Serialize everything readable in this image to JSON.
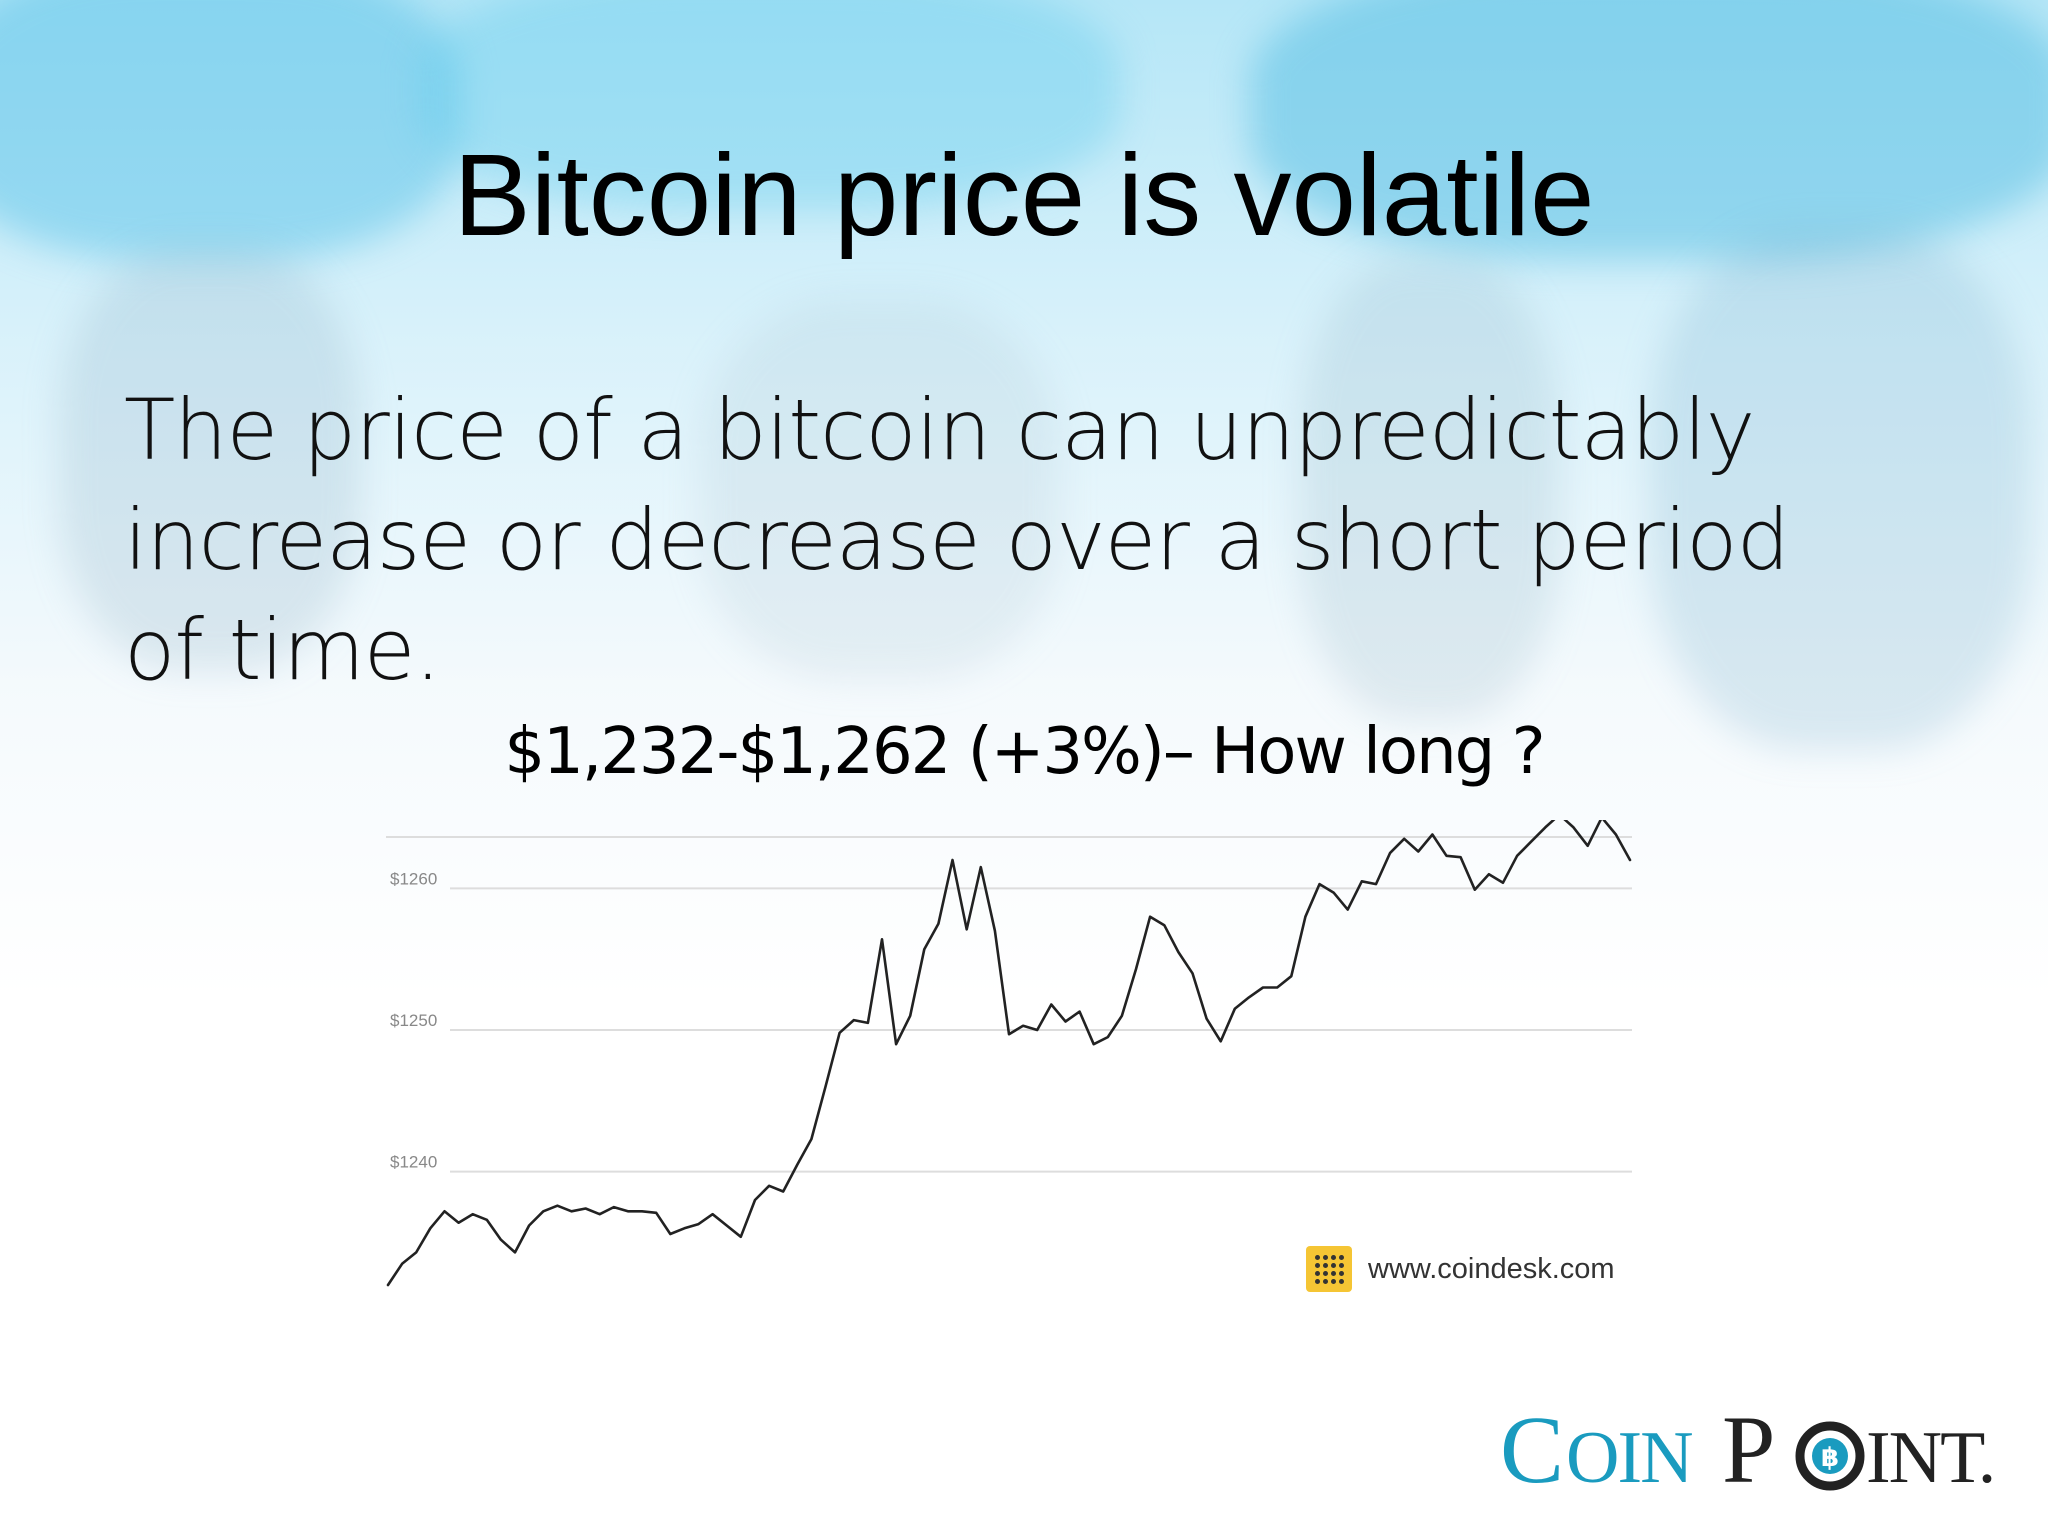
{
  "slide": {
    "title": "Bitcoin price is volatile",
    "body": "The price of a bitcoin can unpredictably increase or decrease over a short period of time.",
    "chart_heading": "$1,232-$1,262 (+3%)– How long ?",
    "source_url": "www.coindesk.com",
    "logo_text": "COINPOINT.",
    "colors": {
      "line": "#222222",
      "grid": "#dddddd",
      "tick_label": "#888888",
      "logo_teal": "#1a9bbf",
      "logo_dark": "#222222",
      "badge": "#f5c534"
    }
  },
  "chart_data": {
    "type": "line",
    "title": "",
    "xlabel": "",
    "ylabel": "",
    "ylim": [
      1232,
      1262
    ],
    "yticks": [
      {
        "value": 1240,
        "label": "$1240"
      },
      {
        "value": 1250,
        "label": "$1250"
      },
      {
        "value": 1260,
        "label": "$1260"
      }
    ],
    "grid": true,
    "series": [
      {
        "values": [
          1232.0,
          1233.5,
          1234.3,
          1236.0,
          1237.2,
          1236.4,
          1237.0,
          1236.6,
          1235.2,
          1234.3,
          1236.2,
          1237.2,
          1237.6,
          1237.2,
          1237.4,
          1237.0,
          1237.5,
          1237.2,
          1237.2,
          1237.1,
          1235.6,
          1236.0,
          1236.3,
          1237.0,
          1236.2,
          1235.4,
          1238.0,
          1239.0,
          1238.6,
          1240.5,
          1242.3,
          1246.0,
          1249.8,
          1250.7,
          1250.5,
          1256.4,
          1249.0,
          1251.0,
          1255.7,
          1257.5,
          1262.0,
          1257.1,
          1261.5,
          1257.0,
          1249.7,
          1250.3,
          1250.0,
          1251.8,
          1250.6,
          1251.3,
          1249.0,
          1249.5,
          1251.0,
          1254.3,
          1258.0,
          1257.4,
          1255.5,
          1254.0,
          1250.8,
          1249.2,
          1251.5,
          1252.3,
          1253.0,
          1253.0,
          1253.8,
          1258.0,
          1260.3,
          1259.7,
          1258.5,
          1260.5,
          1260.3,
          1262.5,
          1263.5,
          1262.6,
          1263.8,
          1262.3,
          1262.2,
          1259.9,
          1261.0,
          1260.4,
          1262.3,
          1263.3,
          1264.3,
          1265.2,
          1264.3,
          1263.0,
          1265.0,
          1263.8,
          1262.0
        ]
      }
    ]
  }
}
